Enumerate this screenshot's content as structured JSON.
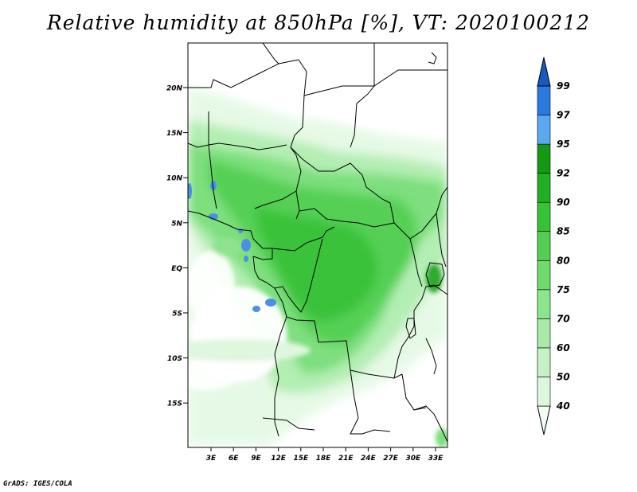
{
  "title": "Relative humidity at 850hPa [%], VT: 2020100212",
  "credit": "GrADS: IGES/COLA",
  "map": {
    "lat_labels": [
      "20N",
      "15N",
      "10N",
      "5N",
      "EQ",
      "5S",
      "10S",
      "15S"
    ],
    "lon_labels": [
      "3E",
      "6E",
      "9E",
      "12E",
      "15E",
      "18E",
      "21E",
      "24E",
      "27E",
      "30E",
      "33E"
    ]
  },
  "colorbar": {
    "levels": [
      "40",
      "50",
      "60",
      "70",
      "75",
      "80",
      "85",
      "90",
      "92",
      "95",
      "97",
      "99"
    ],
    "colors": [
      "#f2fdf2",
      "#dcf8dc",
      "#c4f2c4",
      "#a8eba8",
      "#8ce48c",
      "#6fdb6f",
      "#52cf52",
      "#38c238",
      "#22b022",
      "#129a12",
      "#5aa8f0",
      "#2a7ae2",
      "#1a58c2"
    ]
  }
}
